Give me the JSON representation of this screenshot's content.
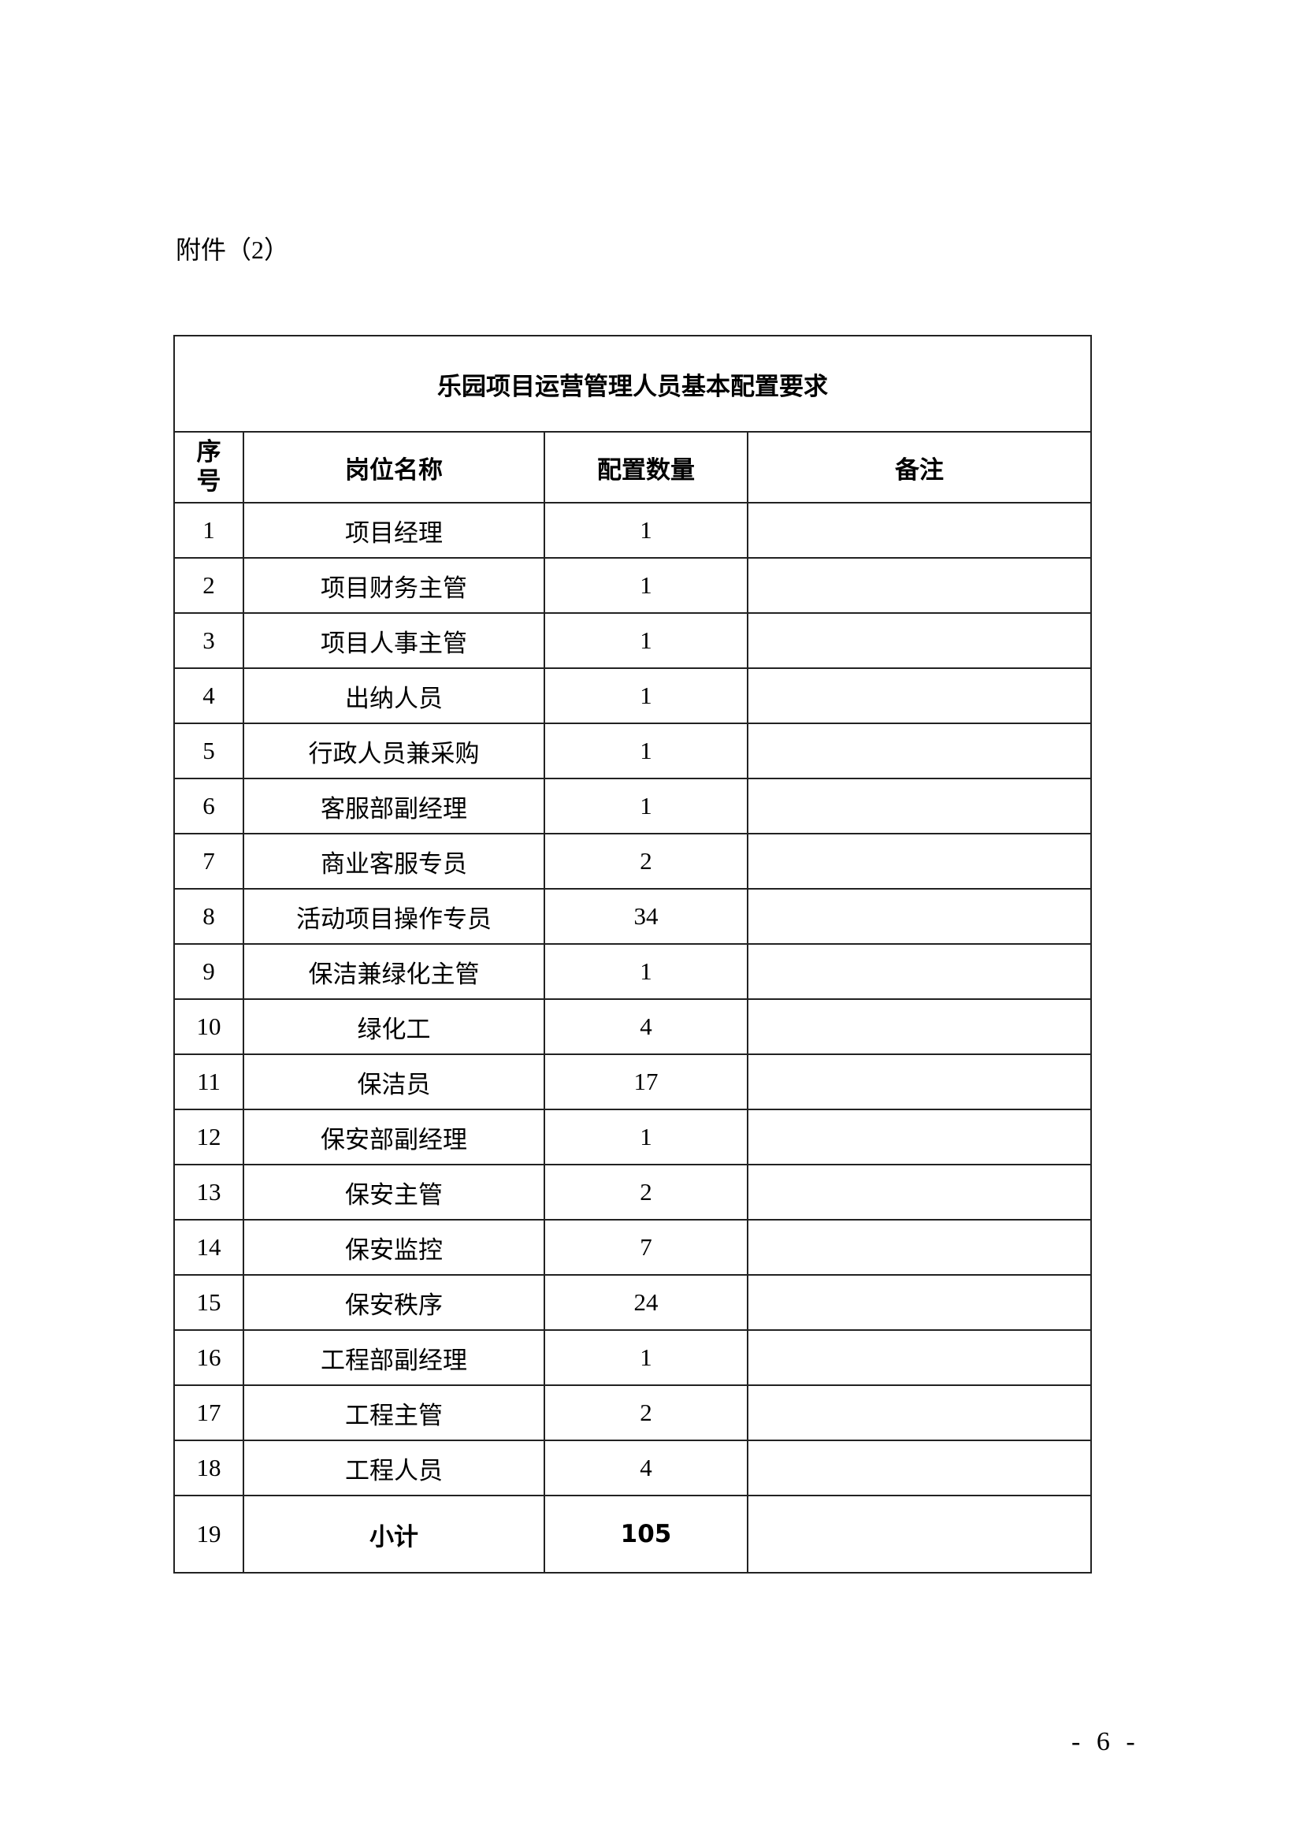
{
  "attachment_label": "附件（2）",
  "table": {
    "title": "乐园项目运营管理人员基本配置要求",
    "headers": {
      "no": "序号",
      "position": "岗位名称",
      "count": "配置数量",
      "remark": "备注"
    },
    "rows": [
      {
        "no": "1",
        "position": "项目经理",
        "count": "1",
        "remark": ""
      },
      {
        "no": "2",
        "position": "项目财务主管",
        "count": "1",
        "remark": ""
      },
      {
        "no": "3",
        "position": "项目人事主管",
        "count": "1",
        "remark": ""
      },
      {
        "no": "4",
        "position": "出纳人员",
        "count": "1",
        "remark": ""
      },
      {
        "no": "5",
        "position": "行政人员兼采购",
        "count": "1",
        "remark": ""
      },
      {
        "no": "6",
        "position": "客服部副经理",
        "count": "1",
        "remark": ""
      },
      {
        "no": "7",
        "position": "商业客服专员",
        "count": "2",
        "remark": ""
      },
      {
        "no": "8",
        "position": "活动项目操作专员",
        "count": "34",
        "remark": ""
      },
      {
        "no": "9",
        "position": "保洁兼绿化主管",
        "count": "1",
        "remark": ""
      },
      {
        "no": "10",
        "position": "绿化工",
        "count": "4",
        "remark": ""
      },
      {
        "no": "11",
        "position": "保洁员",
        "count": "17",
        "remark": ""
      },
      {
        "no": "12",
        "position": "保安部副经理",
        "count": "1",
        "remark": ""
      },
      {
        "no": "13",
        "position": "保安主管",
        "count": "2",
        "remark": ""
      },
      {
        "no": "14",
        "position": "保安监控",
        "count": "7",
        "remark": ""
      },
      {
        "no": "15",
        "position": "保安秩序",
        "count": "24",
        "remark": ""
      },
      {
        "no": "16",
        "position": "工程部副经理",
        "count": "1",
        "remark": ""
      },
      {
        "no": "17",
        "position": "工程主管",
        "count": "2",
        "remark": ""
      },
      {
        "no": "18",
        "position": "工程人员",
        "count": "4",
        "remark": ""
      }
    ],
    "total": {
      "no": "19",
      "position": "小计",
      "count": "105",
      "remark": ""
    }
  },
  "page_number": "- 6 -"
}
